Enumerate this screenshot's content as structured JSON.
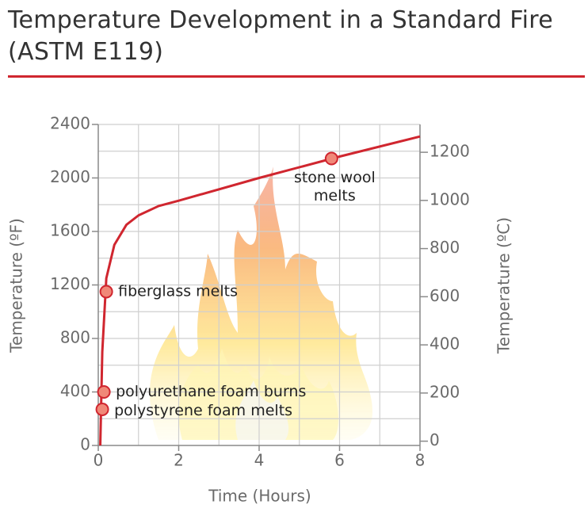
{
  "chart_data": {
    "type": "line",
    "title": [
      "Temperature Development in a Standard Fire",
      "(ASTM E119)"
    ],
    "x_label": "Time (Hours)",
    "y_label": "Temperature (ºF)",
    "y2_label": "Temperature (ºC)",
    "x": [
      0.05,
      0.1,
      0.2,
      0.4,
      0.7,
      1,
      1.5,
      2,
      4,
      6,
      8
    ],
    "series": [
      {
        "name": "ASTM E119",
        "color": "#d0262f",
        "values": [
          0,
          700,
          1250,
          1500,
          1650,
          1720,
          1790,
          1830,
          2000,
          2160,
          2310
        ]
      }
    ],
    "annotations": [
      {
        "label": "polystyrene foam melts",
        "x": 0.1,
        "y": 270
      },
      {
        "label": "polyurethane foam burns",
        "x": 0.14,
        "y": 400
      },
      {
        "label": "fiberglass melts",
        "x": 0.2,
        "y": 1150
      },
      {
        "label": "stone wool melts",
        "x": 5.8,
        "y": 2145
      }
    ],
    "xlim": [
      0,
      8
    ],
    "xticks": [
      0,
      2,
      4,
      6,
      8
    ],
    "xgrid": [
      1,
      2,
      3,
      4,
      5,
      6,
      7,
      8
    ],
    "ylim": [
      0,
      2400
    ],
    "yticks": [
      0,
      400,
      800,
      1200,
      1600,
      2000,
      2400
    ],
    "ygrid": [
      200,
      400,
      600,
      800,
      1000,
      1200,
      1400,
      1600,
      1800,
      2000,
      2200,
      2400
    ],
    "y2lim": [
      -17.8,
      1315.6
    ],
    "y2ticks": [
      0,
      200,
      400,
      600,
      800,
      1000,
      1200
    ],
    "grid": true
  }
}
